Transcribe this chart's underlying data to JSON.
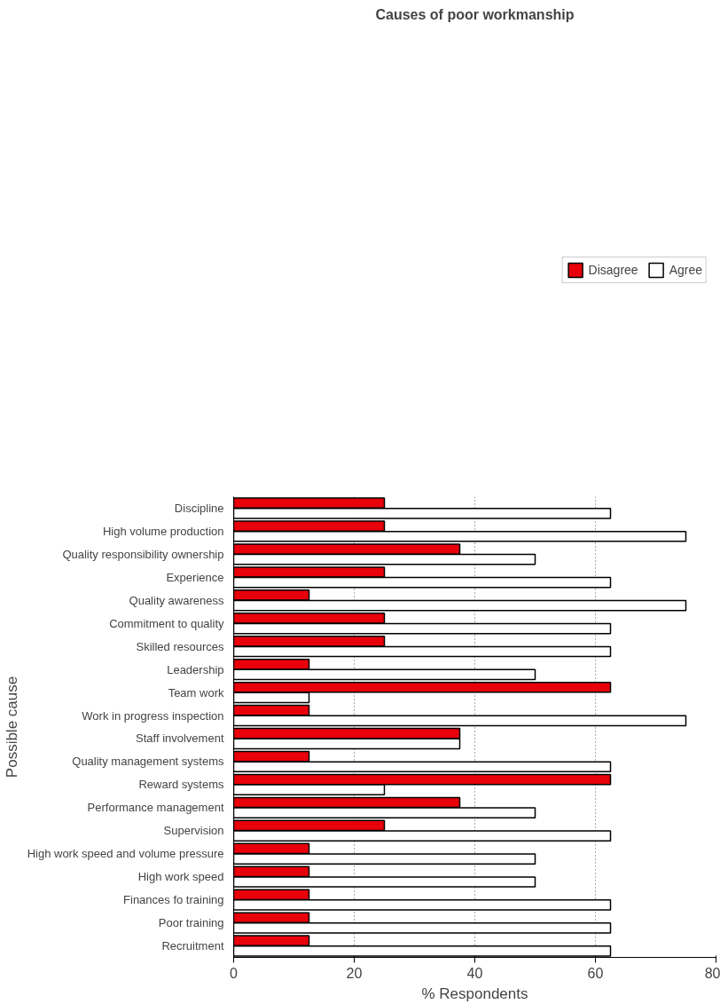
{
  "chart_data": {
    "type": "bar",
    "orientation": "horizontal",
    "title": "Causes of poor workmanship",
    "xlabel": "% Respondents",
    "ylabel": "Possible cause",
    "categories": [
      "Discipline",
      "High volume production",
      "Quality responsibility ownership",
      "Experience",
      "Quality awareness",
      "Commitment to quality",
      "Skilled resources",
      "Leadership",
      "Team work",
      "Work in progress inspection",
      "Staff involvement",
      "Quality management systems",
      "Reward systems",
      "Performance management",
      "Supervision",
      "High work speed and volume pressure",
      "High work speed",
      "Finances fo training",
      "Poor training",
      "Recruitment"
    ],
    "series": [
      {
        "name": "Disagree",
        "color": "#e8000b",
        "values": [
          25,
          25,
          37.5,
          25,
          12.5,
          25,
          25,
          12.5,
          62.5,
          12.5,
          37.5,
          12.5,
          62.5,
          37.5,
          25,
          12.5,
          12.5,
          12.5,
          12.5,
          12.5
        ]
      },
      {
        "name": "Agree",
        "color": "#ffffff",
        "values": [
          62.5,
          75,
          50,
          62.5,
          75,
          62.5,
          62.5,
          50,
          12.5,
          75,
          37.5,
          62.5,
          25,
          50,
          62.5,
          50,
          50,
          62.5,
          62.5,
          62.5
        ]
      }
    ],
    "xlim": [
      0,
      80
    ],
    "xticks": [
      0,
      20,
      40,
      60,
      80
    ],
    "grid": "x",
    "legend": "top right"
  }
}
